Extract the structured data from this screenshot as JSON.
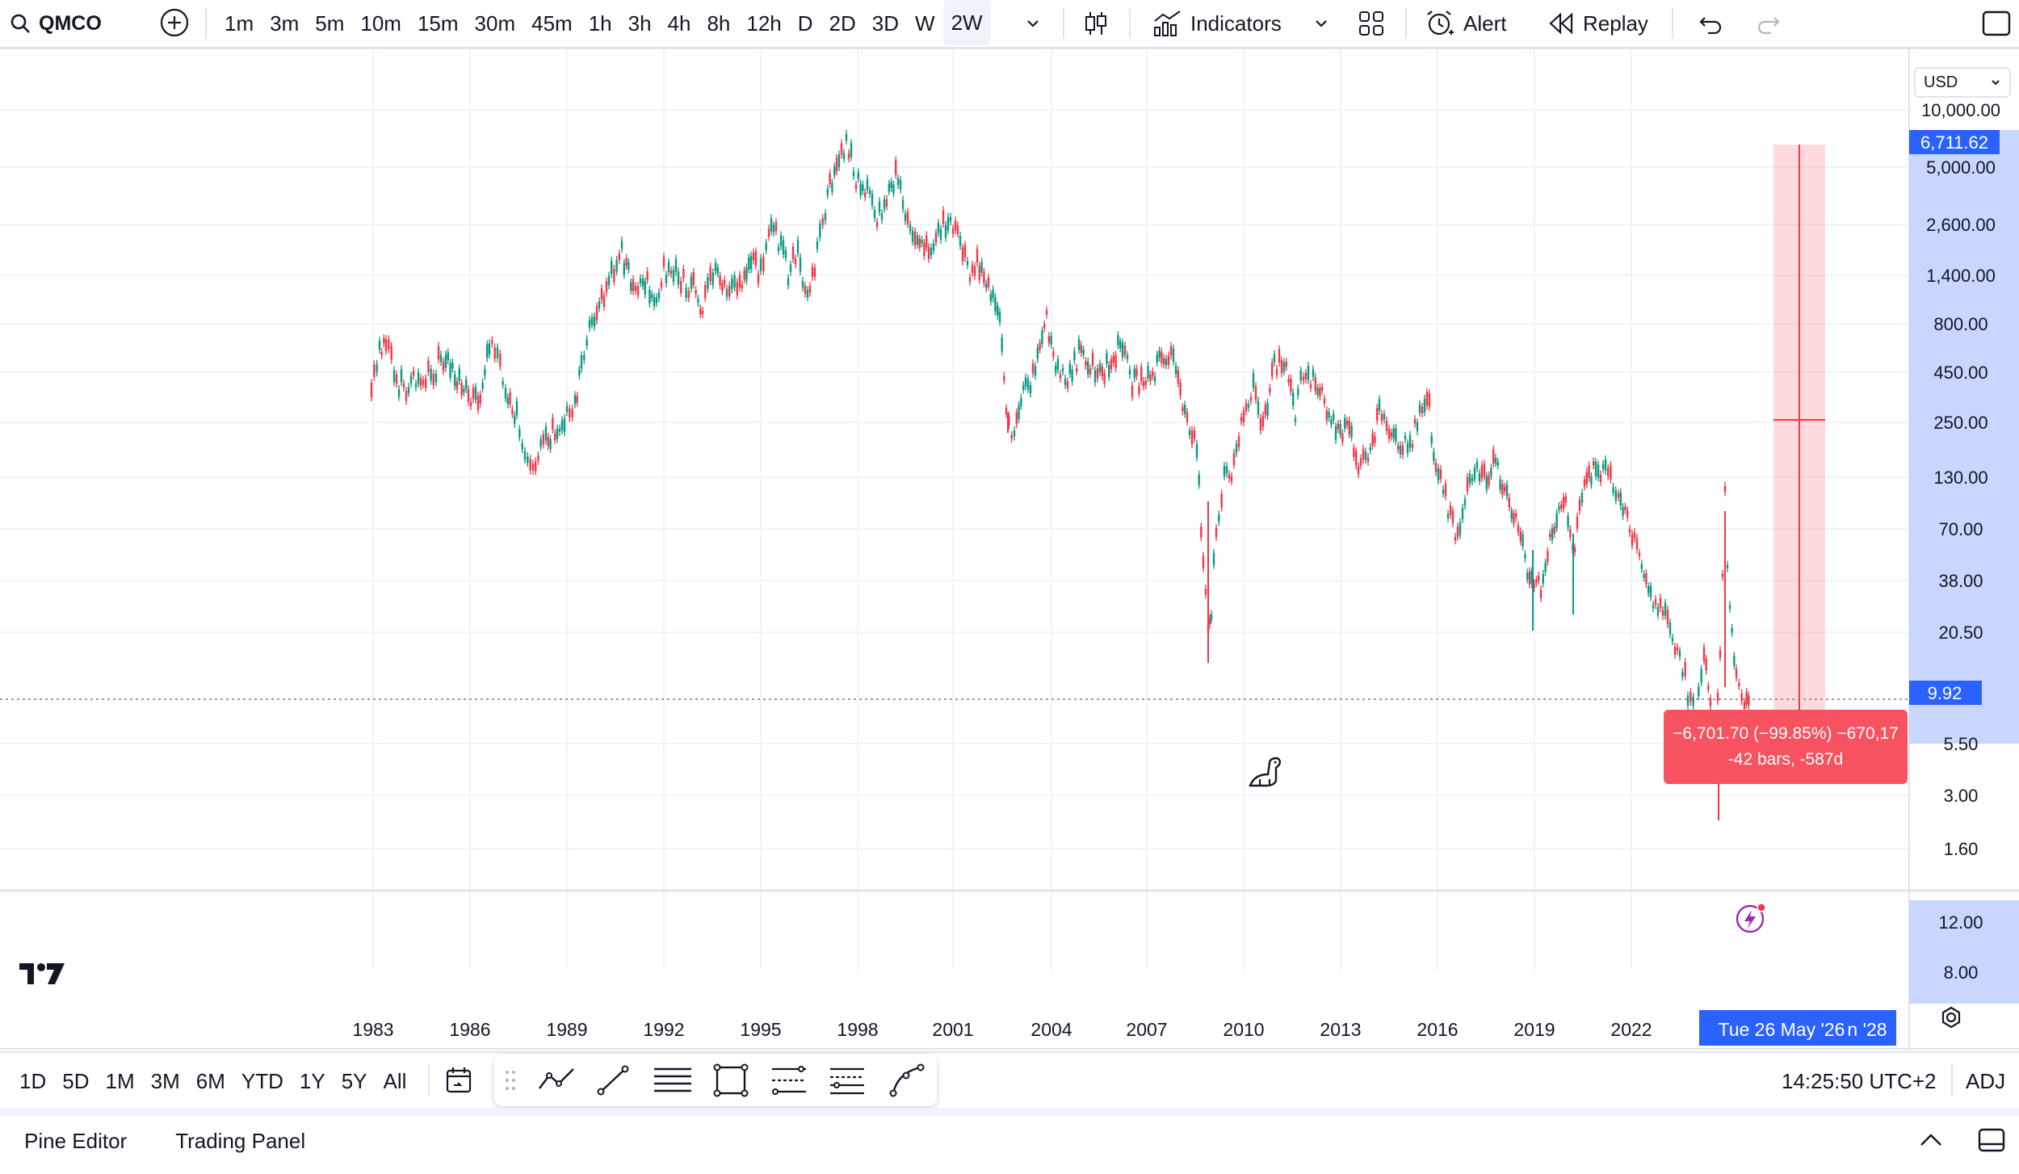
{
  "topbar": {
    "symbol": "QMCO",
    "intervals": [
      "1m",
      "3m",
      "5m",
      "10m",
      "15m",
      "30m",
      "45m",
      "1h",
      "3h",
      "4h",
      "8h",
      "12h",
      "D",
      "2D",
      "3D",
      "W",
      "2W"
    ],
    "active_interval": "2W",
    "indicators_label": "Indicators",
    "alert_label": "Alert",
    "replay_label": "Replay"
  },
  "chart": {
    "currency": "USD",
    "price_axis_labels": [
      "10,000.00",
      "5,000.00",
      "2,600.00",
      "1,400.00",
      "800.00",
      "450.00",
      "250.00",
      "130.00",
      "70.00",
      "38.00",
      "20.50",
      "5.50",
      "3.00",
      "1.60"
    ],
    "current_price": "9.92",
    "measure_top_price": "6,711.62",
    "volume_axis_labels": [
      "12.00",
      "8.00"
    ],
    "time_axis_labels": [
      "1983",
      "1986",
      "1989",
      "1992",
      "1995",
      "1998",
      "2001",
      "2004",
      "2007",
      "2010",
      "2013",
      "2016",
      "2019",
      "2022"
    ],
    "crosshair_date": "Tue 26 May '26",
    "crosshair_date_tail": "n '28",
    "measure_line1": "−6,701.70 (−99.85%) −670,17",
    "measure_line2": "-42 bars, -587d",
    "colors": {
      "up": "#089981",
      "down": "#f23645",
      "measure": "#f7525f",
      "accent": "#2962ff",
      "scale_highlight": "#c9d6ff"
    }
  },
  "bottombar": {
    "ranges": [
      "1D",
      "5D",
      "1M",
      "3M",
      "6M",
      "YTD",
      "1Y",
      "5Y",
      "All"
    ],
    "clock": "14:25:50 UTC+2",
    "adj": "ADJ"
  },
  "footer": {
    "tabs": [
      "Pine Editor",
      "Trading Panel"
    ]
  }
}
